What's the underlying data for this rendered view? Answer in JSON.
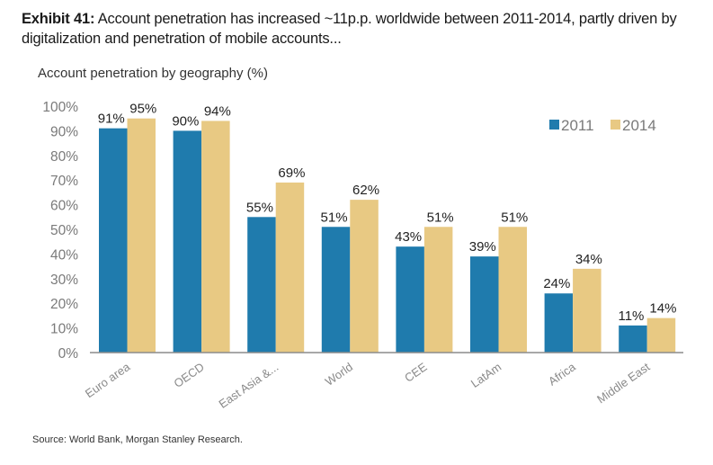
{
  "header": {
    "exhibit_label": "Exhibit 41:",
    "title_text": "Account penetration has increased ~11p.p. worldwide between 2011-2014, partly driven by digitalization and penetration of mobile accounts...",
    "subtitle": "Account penetration by geography (%)"
  },
  "footer": {
    "source": "Source: World Bank, Morgan Stanley Research."
  },
  "chart_data": {
    "type": "bar",
    "title": "Account penetration by geography (%)",
    "xlabel": "",
    "ylabel": "",
    "ylim": [
      0,
      100
    ],
    "yticks": [
      0,
      10,
      20,
      30,
      40,
      50,
      60,
      70,
      80,
      90,
      100
    ],
    "ytick_suffix": "%",
    "grid": false,
    "legend_position": "top-right",
    "categories": [
      "Euro area",
      "OECD",
      "East Asia &...",
      "World",
      "CEE",
      "LatAm",
      "Africa",
      "Middle East"
    ],
    "series": [
      {
        "name": "2011",
        "color": "#1f7bad",
        "values": [
          91,
          90,
          55,
          51,
          43,
          39,
          24,
          11
        ]
      },
      {
        "name": "2014",
        "color": "#e8c983",
        "values": [
          95,
          94,
          69,
          62,
          51,
          51,
          34,
          14
        ]
      }
    ]
  }
}
